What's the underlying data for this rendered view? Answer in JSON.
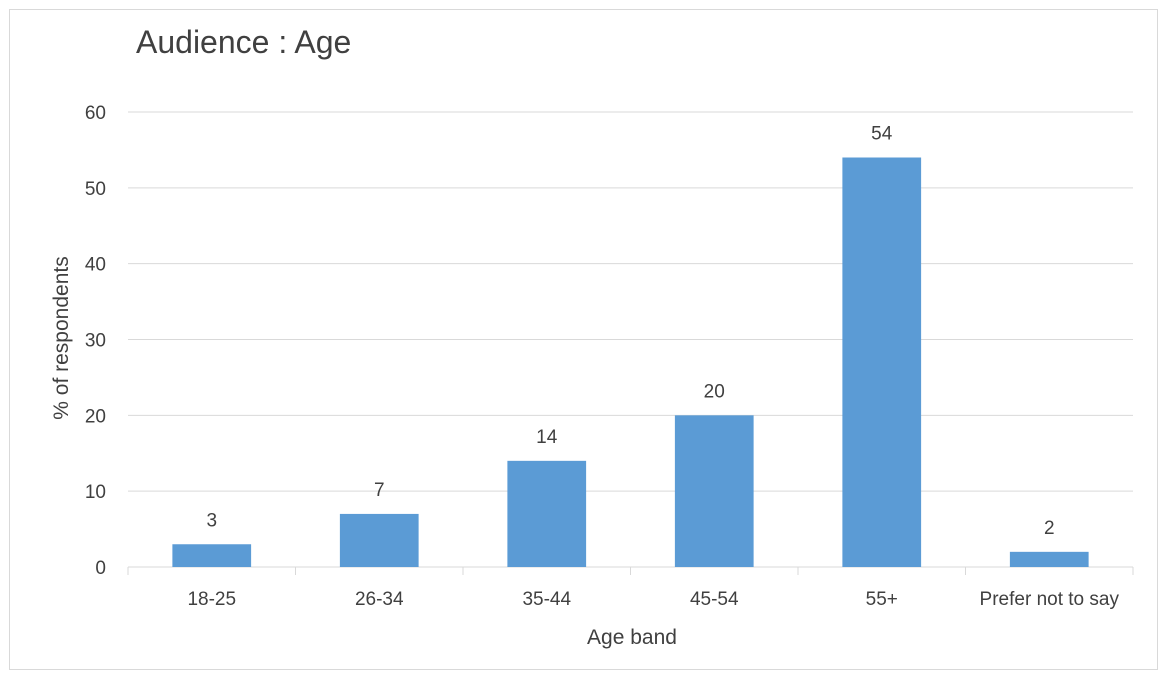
{
  "chart_data": {
    "type": "bar",
    "title": "Audience : Age",
    "xlabel": "Age band",
    "ylabel": "% of respondents",
    "categories": [
      "18-25",
      "26-34",
      "35-44",
      "45-54",
      "55+",
      "Prefer not to say"
    ],
    "values": [
      3,
      7,
      14,
      20,
      54,
      2
    ],
    "data_labels": [
      "3",
      "7",
      "14",
      "20",
      "54",
      "2"
    ],
    "yticks": [
      0,
      10,
      20,
      30,
      40,
      50,
      60
    ],
    "ylim": [
      0,
      60
    ],
    "grid": true,
    "legend": "none",
    "colors": {
      "bar": "#5b9bd5",
      "grid": "#d9d9d9",
      "text": "#404040"
    }
  }
}
